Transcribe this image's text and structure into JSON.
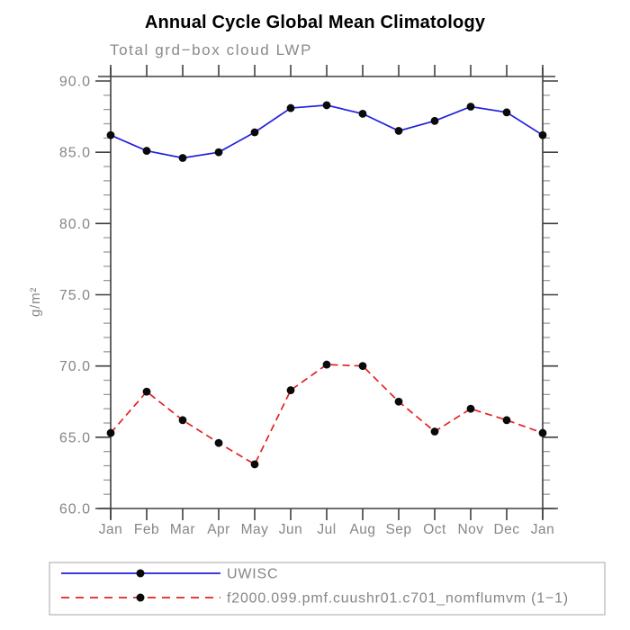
{
  "chart_data": {
    "type": "line",
    "title": "Annual Cycle Global Mean Climatology",
    "subtitle": "Total grd−box cloud LWP",
    "ylabel": "g/m²",
    "xlabel": "",
    "x_tick_labels": [
      "Jan",
      "Feb",
      "Mar",
      "Apr",
      "May",
      "Jun",
      "Jul",
      "Aug",
      "Sep",
      "Oct",
      "Nov",
      "Dec",
      "Jan"
    ],
    "y_ticks": [
      {
        "value": 90,
        "label": "90.0"
      },
      {
        "value": 85,
        "label": "85.0"
      },
      {
        "value": 80,
        "label": "80.0"
      },
      {
        "value": 75,
        "label": "75.0"
      },
      {
        "value": 70,
        "label": "70.0"
      },
      {
        "value": 65,
        "label": "65.0"
      },
      {
        "value": 60,
        "label": "60.0"
      }
    ],
    "ylim": [
      60,
      90.3
    ],
    "y_minor_step": 1,
    "grid": false,
    "legend_position": "bottom-left",
    "series": [
      {
        "name": "UWISC",
        "line_style": "solid",
        "color": "#2121dc",
        "marker": "black-dot",
        "values": [
          86.2,
          85.1,
          84.6,
          85.0,
          86.4,
          88.1,
          88.3,
          87.7,
          86.5,
          87.2,
          88.2,
          87.8,
          86.2
        ]
      },
      {
        "name": "f2000.099.pmf.cuushr01.c701_nomflumvm (1−1)",
        "line_style": "dashed",
        "color": "#e22222",
        "marker": "black-dot",
        "values": [
          65.3,
          68.2,
          66.2,
          64.6,
          63.1,
          68.3,
          70.1,
          70.0,
          67.5,
          65.4,
          67.0,
          66.2,
          65.3
        ]
      }
    ],
    "colors": {
      "axis": "#3f3f3f",
      "minor_tick": "#9b9b9b",
      "label_gray": "#868686",
      "title": "#000000",
      "marker": "#0a0a0a",
      "legend_border": "#b4b4b4"
    }
  }
}
